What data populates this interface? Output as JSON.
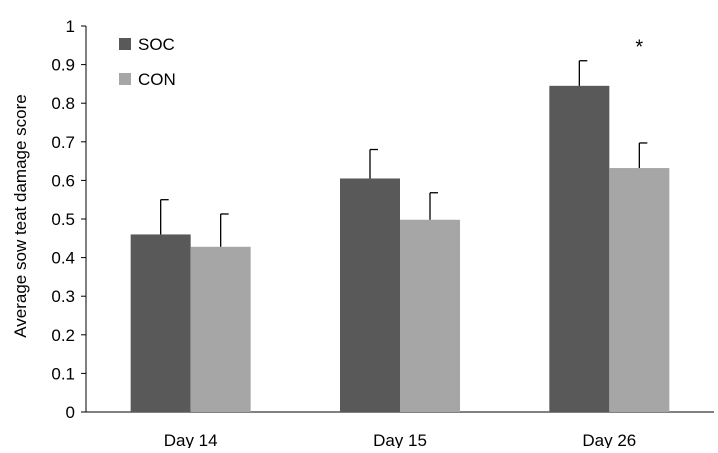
{
  "chart_data": {
    "type": "bar",
    "ylabel": "Average sow teat damage score",
    "ylim": [
      0,
      1
    ],
    "ytick_step": 0.1,
    "grid": false,
    "legend_position": "top-left",
    "categories": [
      "Day 14",
      "Day 15",
      "Day 26"
    ],
    "series": [
      {
        "name": "SOC",
        "color": "#595959",
        "values": [
          0.46,
          0.605,
          0.845
        ],
        "error": [
          0.09,
          0.075,
          0.065
        ]
      },
      {
        "name": "CON",
        "color": "#a6a6a6",
        "values": [
          0.428,
          0.498,
          0.632
        ],
        "error": [
          0.085,
          0.07,
          0.065
        ]
      }
    ],
    "yticks": [
      "0",
      "0.1",
      "0.2",
      "0.3",
      "0.4",
      "0.5",
      "0.6",
      "0.7",
      "0.8",
      "0.9",
      "1"
    ],
    "annotations": [
      {
        "text": "*",
        "category": "Day 26",
        "series": "CON",
        "y": 0.955
      }
    ]
  }
}
